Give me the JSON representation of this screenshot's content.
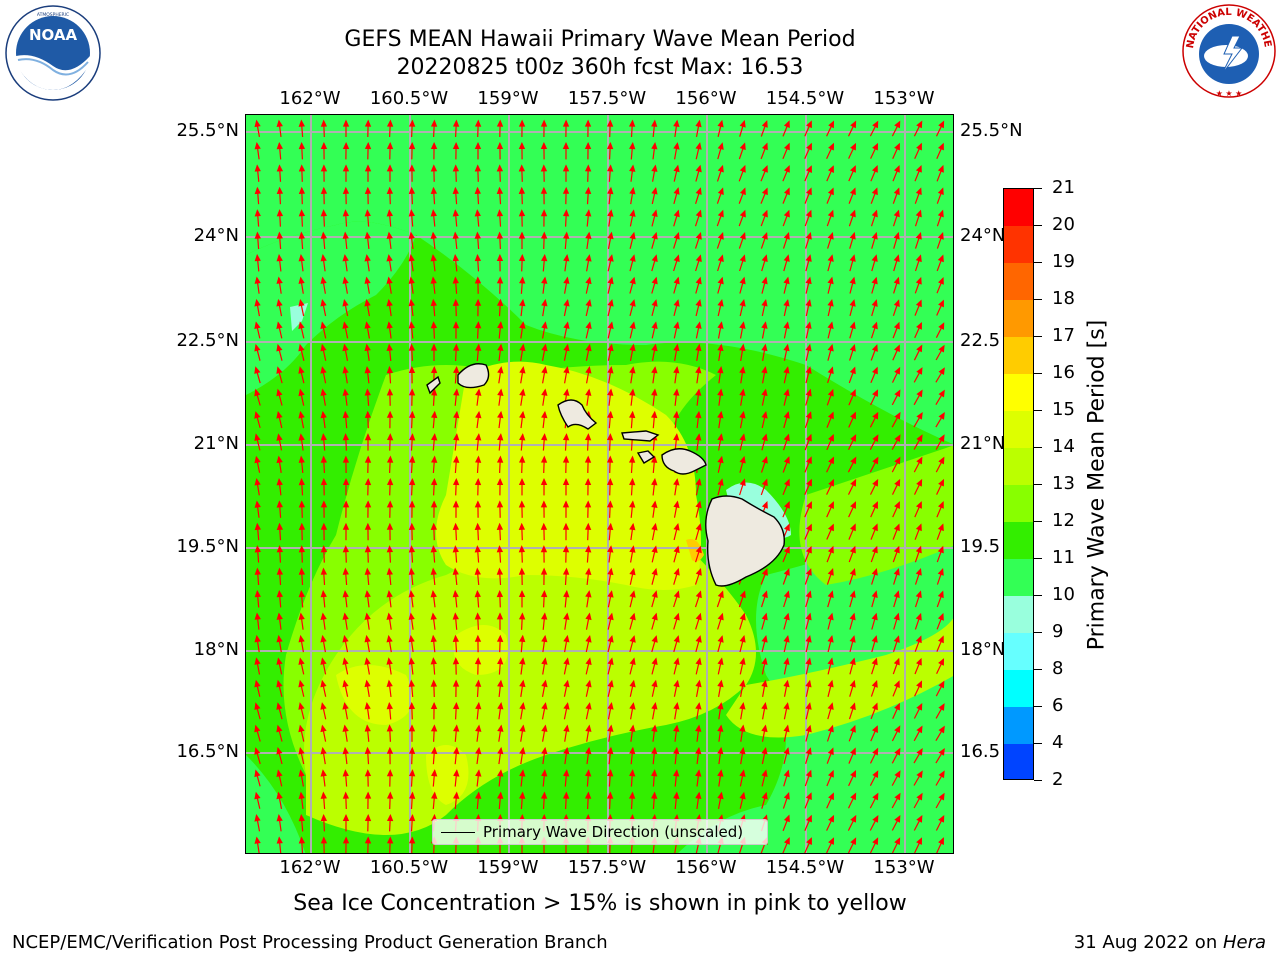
{
  "title": {
    "line1": "GEFS MEAN Hawaii Primary Wave Mean Period",
    "line2": "20220825 t00z 360h fcst   Max: 16.53"
  },
  "axes": {
    "lon_ticks": [
      "162°W",
      "160.5°W",
      "159°W",
      "157.5°W",
      "156°W",
      "154.5°W",
      "153°W"
    ],
    "lat_ticks": [
      "25.5°N",
      "24°N",
      "22.5°N",
      "21°N",
      "19.5°N",
      "18°N",
      "16.5°N"
    ],
    "lat_ticks_right": [
      "25.5°N",
      "24°N",
      "22.5",
      "21°N",
      "19.5",
      "18°N",
      "16.5"
    ]
  },
  "map": {
    "region": "Hawaii",
    "lon_range": [
      -163,
      -152.6
    ],
    "lat_range": [
      15,
      25.8
    ],
    "gridlines": true,
    "vector_color": "#ff0000",
    "legend_label": "Primary Wave Direction (unscaled)"
  },
  "colorbar": {
    "label": "Primary Wave Mean Period [s]",
    "ticks": [
      "21",
      "20",
      "19",
      "18",
      "17",
      "16",
      "15",
      "14",
      "13",
      "12",
      "11",
      "10",
      "9",
      "8",
      "6",
      "4",
      "2"
    ],
    "colors": [
      "#ff0000",
      "#ff3300",
      "#ff6600",
      "#ff9900",
      "#ffcc00",
      "#ffff00",
      "#ddff00",
      "#bbff00",
      "#88ff00",
      "#33ee00",
      "#33ff55",
      "#99ffdd",
      "#66ffff",
      "#00ffff",
      "#0099ff",
      "#0044ff",
      "#0000ff"
    ]
  },
  "caption": "Sea Ice Concentration > 15% is shown in pink to yellow",
  "footer": {
    "left": "NCEP/EMC/Verification Post Processing Product Generation Branch",
    "right_prefix": "31 Aug 2022 on ",
    "right_machine": "Hera"
  },
  "logos": {
    "left": {
      "text": "NOAA",
      "ring_text": "NATIONAL OCEANIC AND ATMOSPHERIC ADMINISTRATION · U.S. DEPARTMENT OF COMMERCE"
    },
    "right": {
      "ring_text": "NATIONAL WEATHER SERVICE"
    }
  }
}
